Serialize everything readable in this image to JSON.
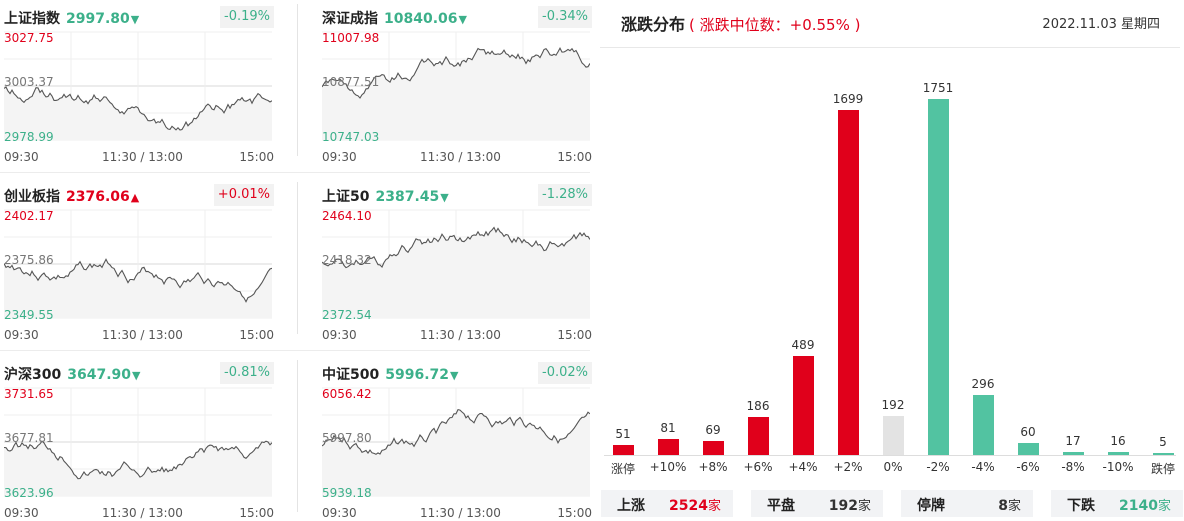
{
  "panels": [
    {
      "name": "上证指数",
      "price": "2997.80",
      "direction": "down",
      "arrow": "▼",
      "change": "-0.19%",
      "top_label": "3027.75",
      "mid_label": "3003.37",
      "bottom_label": "2978.99",
      "times": [
        "09:30",
        "11:30 / 13:00",
        "15:00"
      ],
      "series_seed": 1
    },
    {
      "name": "深证成指",
      "price": "10840.06",
      "direction": "down",
      "arrow": "▼",
      "change": "-0.34%",
      "top_label": "11007.98",
      "mid_label": "10877.51",
      "bottom_label": "10747.03",
      "times": [
        "09:30",
        "11:30 / 13:00",
        "15:00"
      ],
      "series_seed": 2
    },
    {
      "name": "创业板指",
      "price": "2376.06",
      "direction": "up",
      "arrow": "▲",
      "change": "+0.01%",
      "top_label": "2402.17",
      "mid_label": "2375.86",
      "bottom_label": "2349.55",
      "times": [
        "09:30",
        "11:30 / 13:00",
        "15:00"
      ],
      "series_seed": 3
    },
    {
      "name": "上证50",
      "price": "2387.45",
      "direction": "down",
      "arrow": "▼",
      "change": "-1.28%",
      "top_label": "2464.10",
      "mid_label": "2418.32",
      "bottom_label": "2372.54",
      "times": [
        "09:30",
        "11:30 / 13:00",
        "15:00"
      ],
      "series_seed": 4
    },
    {
      "name": "沪深300",
      "price": "3647.90",
      "direction": "down",
      "arrow": "▼",
      "change": "-0.81%",
      "top_label": "3731.65",
      "mid_label": "3677.81",
      "bottom_label": "3623.96",
      "times": [
        "09:30",
        "11:30 / 13:00",
        "15:00"
      ],
      "series_seed": 5
    },
    {
      "name": "中证500",
      "price": "5996.72",
      "direction": "down",
      "arrow": "▼",
      "change": "-0.02%",
      "top_label": "6056.42",
      "mid_label": "5997.80",
      "bottom_label": "5939.18",
      "times": [
        "09:30",
        "11:30 / 13:00",
        "15:00"
      ],
      "series_seed": 6
    }
  ],
  "distribution": {
    "title": "涨跌分布",
    "subtitle": "( 涨跌中位数：+0.55% )",
    "date": "2022.11.03 星期四",
    "colors": {
      "up": "#e0001b",
      "down": "#52c3a1",
      "flat": "#e3e3e3"
    },
    "chart_data": {
      "type": "bar",
      "categories": [
        "涨停",
        "+10%",
        "+8%",
        "+6%",
        "+4%",
        "+2%",
        "0%",
        "-2%",
        "-4%",
        "-6%",
        "-8%",
        "-10%",
        "跌停"
      ],
      "values": [
        51,
        81,
        69,
        186,
        489,
        1699,
        192,
        1751,
        296,
        60,
        17,
        16,
        5
      ],
      "bar_colors": [
        "up",
        "up",
        "up",
        "up",
        "up",
        "up",
        "flat",
        "down",
        "down",
        "down",
        "down",
        "down",
        "down"
      ]
    },
    "summary": [
      {
        "label": "上涨",
        "value": "2524",
        "unit": "家",
        "color": "#e0001b"
      },
      {
        "label": "平盘",
        "value": "192",
        "unit": "家",
        "color": "#333333"
      },
      {
        "label": "停牌",
        "value": "8",
        "unit": "家",
        "color": "#333333"
      },
      {
        "label": "下跌",
        "value": "2140",
        "unit": "家",
        "color": "#3cb08a"
      }
    ]
  }
}
